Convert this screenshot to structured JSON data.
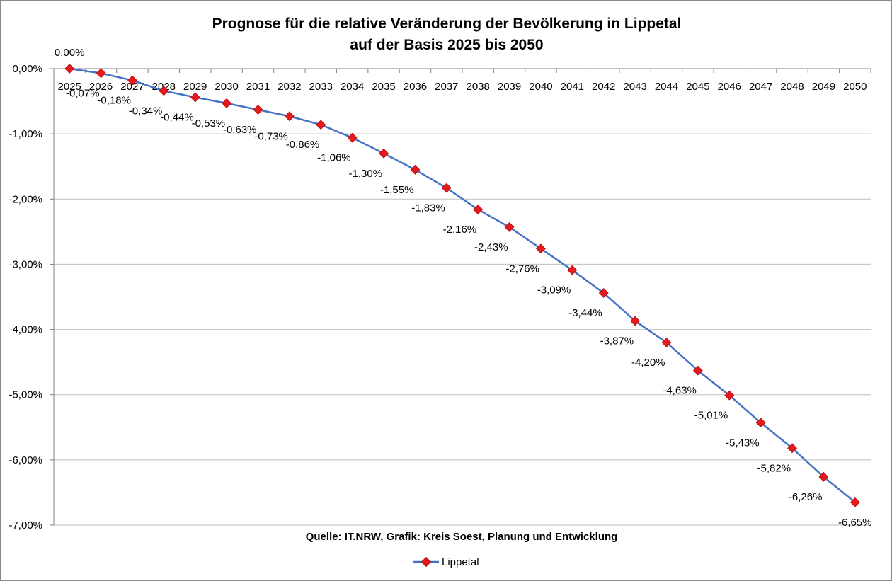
{
  "chart_data": {
    "type": "line",
    "title": [
      "Prognose für die relative Veränderung der Bevölkerung in Lippetal",
      "auf der Basis 2025 bis 2050"
    ],
    "source": "Quelle: IT.NRW, Grafik: Kreis Soest, Planung und Entwicklung",
    "x": [
      "2025",
      "2026",
      "2027",
      "2028",
      "2029",
      "2030",
      "2031",
      "2032",
      "2033",
      "2034",
      "2035",
      "2036",
      "2037",
      "2038",
      "2039",
      "2040",
      "2041",
      "2042",
      "2043",
      "2044",
      "2045",
      "2046",
      "2047",
      "2048",
      "2049",
      "2050"
    ],
    "series": [
      {
        "name": "Lippetal",
        "values": [
          0.0,
          -0.07,
          -0.18,
          -0.34,
          -0.44,
          -0.53,
          -0.63,
          -0.73,
          -0.86,
          -1.06,
          -1.3,
          -1.55,
          -1.83,
          -2.16,
          -2.43,
          -2.76,
          -3.09,
          -3.44,
          -3.87,
          -4.2,
          -4.63,
          -5.01,
          -5.43,
          -5.82,
          -6.26,
          -6.65
        ],
        "labels": [
          "0,00%",
          "-0,07%",
          "-0,18%",
          "-0,34%",
          "-0,44%",
          "-0,53%",
          "-0,63%",
          "-0,73%",
          "-0,86%",
          "-1,06%",
          "-1,30%",
          "-1,55%",
          "-1,83%",
          "-2,16%",
          "-2,43%",
          "-2,76%",
          "-3,09%",
          "-3,44%",
          "-3,87%",
          "-4,20%",
          "-4,63%",
          "-5,01%",
          "-5,43%",
          "-5,82%",
          "-6,26%",
          "-6,65%"
        ]
      }
    ],
    "y_ticks": [
      0,
      -1,
      -2,
      -3,
      -4,
      -5,
      -6,
      -7
    ],
    "y_tick_labels": [
      "0,00%",
      "-1,00%",
      "-2,00%",
      "-3,00%",
      "-4,00%",
      "-5,00%",
      "-6,00%",
      "-7,00%"
    ],
    "ylim": [
      -7,
      0
    ],
    "grid": true,
    "legend_position": "bottom",
    "colors": {
      "line": "#4472C4",
      "marker": "#E41A1C",
      "grid": "#bfbfbf"
    }
  }
}
